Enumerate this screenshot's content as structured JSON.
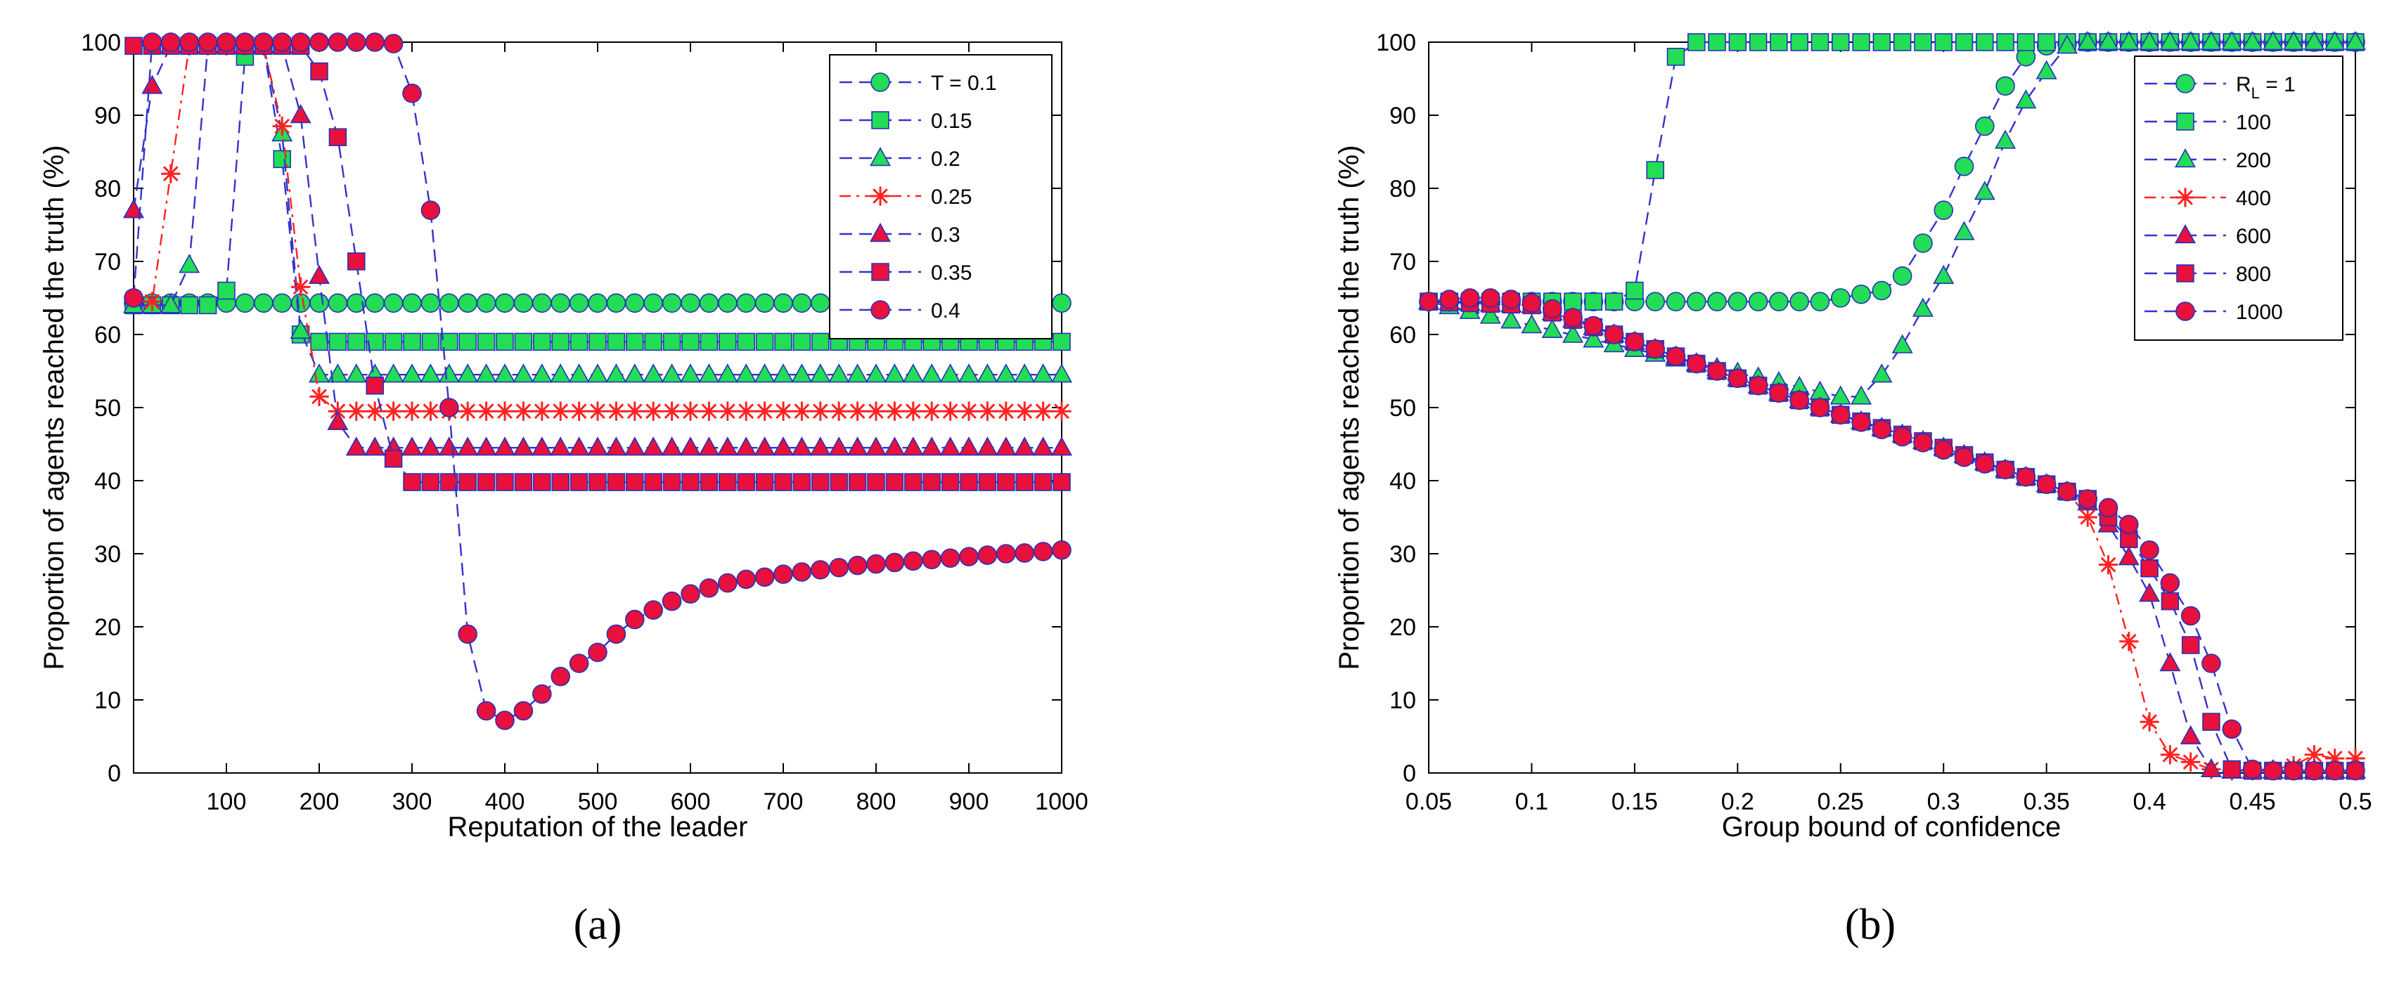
{
  "chart_data": [
    {
      "type": "line",
      "panel": "a",
      "caption": "(a)",
      "xlabel": "Reputation of the leader",
      "ylabel": "Proportion of agents reached the truth (%)",
      "xlim": [
        0,
        1000
      ],
      "ylim": [
        0,
        100
      ],
      "xticks": [
        100,
        200,
        300,
        400,
        500,
        600,
        700,
        800,
        900,
        1000
      ],
      "yticks": [
        0,
        10,
        20,
        30,
        40,
        50,
        60,
        70,
        80,
        90,
        100
      ],
      "legend_position": "top-right",
      "series": [
        {
          "name": "T = 0.1",
          "legend": "T = 0.1",
          "marker": "circle",
          "fill": "#22dd55",
          "line": "#3333cc",
          "dash": "dash",
          "x": [
            0,
            1000
          ],
          "y": [
            64.3,
            64.3
          ],
          "plateau": 64.3
        },
        {
          "name": "0.15",
          "legend": "0.15",
          "marker": "square",
          "fill": "#22dd55",
          "line": "#3333cc",
          "dash": "dash",
          "x": [
            0,
            40,
            60,
            80,
            100,
            120,
            140,
            160,
            180,
            200,
            1000
          ],
          "y": [
            64,
            64,
            64,
            64,
            66,
            98,
            99.5,
            84,
            60,
            59,
            59
          ],
          "plateau": 59
        },
        {
          "name": "0.2",
          "legend": "0.2",
          "marker": "triangle",
          "fill": "#22dd55",
          "line": "#3333cc",
          "dash": "dash",
          "x": [
            0,
            40,
            60,
            80,
            100,
            120,
            140,
            160,
            180,
            200,
            1000
          ],
          "y": [
            64,
            64,
            69.5,
            99.5,
            99.5,
            99.5,
            99.5,
            87.5,
            60.5,
            54.5,
            54.5
          ],
          "plateau": 54.5
        },
        {
          "name": "0.25",
          "legend": "0.25",
          "marker": "star",
          "fill": "#ff2222",
          "line": "#ff2222",
          "dash": "dashdot",
          "x": [
            0,
            20,
            40,
            60,
            80,
            100,
            120,
            140,
            160,
            180,
            200,
            220,
            1000
          ],
          "y": [
            65,
            64.5,
            82,
            99.5,
            99.5,
            99.5,
            99.5,
            99.5,
            88.5,
            66.5,
            51.5,
            49.5,
            49.5
          ],
          "plateau": 49.5
        },
        {
          "name": "0.3",
          "legend": "0.3",
          "marker": "triangle",
          "fill": "#e8103c",
          "line": "#3333cc",
          "dash": "dash",
          "x": [
            0,
            20,
            40,
            60,
            80,
            100,
            120,
            140,
            160,
            180,
            200,
            220,
            240,
            1000
          ],
          "y": [
            77,
            94,
            99.5,
            99.5,
            99.5,
            99.5,
            99.5,
            99.5,
            99.5,
            90,
            68,
            48,
            44.5,
            44.5
          ],
          "plateau": 44.5
        },
        {
          "name": "0.35",
          "legend": "0.35",
          "marker": "square",
          "fill": "#e8103c",
          "line": "#3333cc",
          "dash": "dash",
          "x": [
            0,
            20,
            40,
            60,
            80,
            100,
            120,
            140,
            160,
            180,
            200,
            220,
            240,
            260,
            280,
            300,
            1000
          ],
          "y": [
            99.5,
            99.5,
            99.5,
            99.5,
            99.5,
            99.5,
            99.5,
            99.5,
            99.5,
            99.5,
            96,
            87,
            70,
            53,
            43,
            39.8,
            39.8
          ],
          "plateau": 39.8
        },
        {
          "name": "0.4",
          "legend": "0.4",
          "marker": "circle",
          "fill": "#e8103c",
          "line": "#3333cc",
          "dash": "dash",
          "x": [
            0,
            20,
            40,
            60,
            80,
            100,
            120,
            140,
            160,
            180,
            200,
            220,
            240,
            260,
            280,
            300,
            320,
            340,
            360,
            380,
            400,
            420,
            440,
            460,
            480,
            500,
            520,
            540,
            560,
            580,
            600,
            620,
            640,
            660,
            680,
            700,
            720,
            740,
            760,
            780,
            800,
            820,
            840,
            860,
            880,
            900,
            920,
            940,
            960,
            980,
            1000
          ],
          "y": [
            65,
            100,
            100,
            100,
            100,
            100,
            100,
            100,
            100,
            100,
            100,
            100,
            100,
            100,
            99.8,
            93,
            77,
            50,
            19,
            8.5,
            7.2,
            8.5,
            10.8,
            13.2,
            15,
            16.5,
            19,
            21,
            22.3,
            23.5,
            24.5,
            25.3,
            26,
            26.5,
            26.8,
            27.2,
            27.5,
            27.8,
            28.1,
            28.4,
            28.6,
            28.8,
            29,
            29.2,
            29.4,
            29.6,
            29.8,
            30,
            30.1,
            30.3,
            30.5
          ]
        }
      ]
    },
    {
      "type": "line",
      "panel": "b",
      "caption": "(b)",
      "xlabel": "Group bound of confidence",
      "ylabel": "Proportion of agents reached the truth (%)",
      "xlim": [
        0.05,
        0.5
      ],
      "ylim": [
        0,
        100
      ],
      "xticks": [
        0.05,
        0.1,
        0.15,
        0.2,
        0.25,
        0.3,
        0.35,
        0.4,
        0.45,
        0.5
      ],
      "xtick_labels": [
        "0.05",
        "0.1",
        "0.15",
        "0.2",
        "0.25",
        "0.3",
        "0.35",
        "0.4",
        "0.45",
        "0.5"
      ],
      "yticks": [
        0,
        10,
        20,
        30,
        40,
        50,
        60,
        70,
        80,
        90,
        100
      ],
      "legend_position": "top-right",
      "legend_title_prefix": "R",
      "legend_title_sub": "L",
      "legend_title_suffix": " = 1",
      "series": [
        {
          "name": "1",
          "legend": "1",
          "marker": "circle",
          "fill": "#22dd55",
          "line": "#3333cc",
          "dash": "dash",
          "x": [
            0.05,
            0.06,
            0.07,
            0.08,
            0.09,
            0.1,
            0.11,
            0.12,
            0.13,
            0.14,
            0.15,
            0.16,
            0.17,
            0.18,
            0.19,
            0.2,
            0.21,
            0.22,
            0.23,
            0.24,
            0.25,
            0.26,
            0.27,
            0.28,
            0.29,
            0.3,
            0.31,
            0.32,
            0.33,
            0.34,
            0.35,
            0.36,
            0.37,
            0.38,
            0.39,
            0.4,
            0.41,
            0.42,
            0.43,
            0.44,
            0.45,
            0.46,
            0.47,
            0.48,
            0.49,
            0.5
          ],
          "y": [
            64.5,
            64.5,
            64.5,
            64.5,
            64.5,
            64.5,
            64.5,
            64.5,
            64.5,
            64.5,
            64.5,
            64.5,
            64.5,
            64.5,
            64.5,
            64.5,
            64.5,
            64.5,
            64.5,
            64.5,
            65,
            65.5,
            66,
            68,
            72.5,
            77,
            83,
            88.5,
            94,
            98,
            99.5,
            99.8,
            100,
            100,
            100,
            100,
            100,
            100,
            100,
            100,
            100,
            100,
            100,
            100,
            100,
            100
          ]
        },
        {
          "name": "100",
          "legend": "100",
          "marker": "square",
          "fill": "#22dd55",
          "line": "#3333cc",
          "dash": "dash",
          "x": [
            0.05,
            0.1,
            0.14,
            0.15,
            0.16,
            0.17,
            0.18,
            0.19,
            0.2,
            0.21,
            0.22,
            0.23,
            0.24,
            0.25,
            0.26,
            0.27,
            0.28,
            0.29,
            0.3,
            0.31,
            0.32,
            0.33,
            0.34,
            0.35,
            0.36,
            0.37,
            0.38,
            0.39,
            0.4,
            0.41,
            0.42,
            0.43,
            0.44,
            0.45,
            0.46,
            0.47,
            0.48,
            0.49,
            0.5
          ],
          "y": [
            64.5,
            64.5,
            64.5,
            66,
            82.5,
            98,
            100,
            100,
            100,
            100,
            100,
            100,
            100,
            100,
            100,
            100,
            100,
            100,
            100,
            100,
            100,
            100,
            100,
            100,
            100,
            100,
            100,
            100,
            100,
            100,
            100,
            100,
            100,
            100,
            100,
            100,
            100,
            100,
            100
          ]
        },
        {
          "name": "200",
          "legend": "200",
          "marker": "triangle",
          "fill": "#22dd55",
          "line": "#3333cc",
          "dash": "dash",
          "x": [
            0.05,
            0.25,
            0.26,
            0.27,
            0.28,
            0.29,
            0.3,
            0.31,
            0.32,
            0.33,
            0.34,
            0.35,
            0.36,
            0.37,
            0.38,
            0.39,
            0.4,
            0.41,
            0.42,
            0.43,
            0.44,
            0.45,
            0.46,
            0.47,
            0.48,
            0.49,
            0.5
          ],
          "y": [
            64.5,
            51.5,
            51.5,
            54.5,
            58.5,
            63.5,
            68,
            74,
            79.5,
            86.5,
            92,
            96,
            99.5,
            100,
            100,
            100,
            100,
            100,
            100,
            100,
            100,
            100,
            100,
            100,
            100,
            100,
            100
          ]
        },
        {
          "name": "400",
          "legend": "400",
          "marker": "star",
          "fill": "#ff2222",
          "line": "#ff2222",
          "dash": "dashdot",
          "x": [
            0.05,
            0.1,
            0.15,
            0.2,
            0.25,
            0.3,
            0.35,
            0.36,
            0.37,
            0.38,
            0.39,
            0.4,
            0.41,
            0.42,
            0.43,
            0.44,
            0.45,
            0.46,
            0.47,
            0.48,
            0.49,
            0.5
          ],
          "y": [
            64.5,
            64,
            59,
            54,
            49,
            44.5,
            39.5,
            38.5,
            35,
            28.5,
            18,
            7,
            2.5,
            1.5,
            0.5,
            0.3,
            0.3,
            0.5,
            1,
            2.5,
            2,
            2
          ]
        },
        {
          "name": "600",
          "legend": "600",
          "marker": "triangle",
          "fill": "#e8103c",
          "line": "#3333cc",
          "dash": "dash",
          "x": [
            0.05,
            0.1,
            0.15,
            0.2,
            0.25,
            0.3,
            0.35,
            0.36,
            0.37,
            0.38,
            0.39,
            0.4,
            0.41,
            0.42,
            0.43,
            0.44,
            0.45,
            0.46,
            0.47,
            0.48,
            0.49,
            0.5
          ],
          "y": [
            64.5,
            64,
            59,
            54,
            49,
            44.5,
            39.5,
            38.5,
            37,
            34,
            29.5,
            24.5,
            15,
            5,
            0.5,
            0.3,
            0.3,
            0.3,
            0.3,
            0.3,
            0.3,
            0.3
          ]
        },
        {
          "name": "800",
          "legend": "800",
          "marker": "square",
          "fill": "#e8103c",
          "line": "#3333cc",
          "dash": "dash",
          "x": [
            0.05,
            0.1,
            0.15,
            0.2,
            0.25,
            0.3,
            0.35,
            0.36,
            0.37,
            0.38,
            0.39,
            0.4,
            0.41,
            0.42,
            0.43,
            0.44,
            0.45,
            0.46,
            0.47,
            0.48,
            0.49,
            0.5
          ],
          "y": [
            64.5,
            64,
            59,
            54,
            49,
            44.5,
            39.5,
            38.5,
            37.5,
            35,
            32,
            28,
            23.5,
            17.5,
            7,
            0.5,
            0.3,
            0.3,
            0.3,
            0.3,
            0.3,
            0.3
          ]
        },
        {
          "name": "1000",
          "legend": "1000",
          "marker": "circle",
          "fill": "#e8103c",
          "line": "#3333cc",
          "dash": "dash",
          "x": [
            0.05,
            0.06,
            0.07,
            0.08,
            0.09,
            0.1,
            0.11,
            0.12,
            0.13,
            0.14,
            0.15,
            0.16,
            0.17,
            0.18,
            0.19,
            0.2,
            0.21,
            0.22,
            0.23,
            0.24,
            0.25,
            0.26,
            0.27,
            0.28,
            0.29,
            0.3,
            0.31,
            0.32,
            0.33,
            0.34,
            0.35,
            0.36,
            0.37,
            0.38,
            0.39,
            0.4,
            0.41,
            0.42,
            0.43,
            0.44,
            0.45,
            0.46,
            0.47,
            0.48,
            0.49,
            0.5
          ],
          "y": [
            64.5,
            64.8,
            65,
            65,
            64.8,
            64.3,
            63.5,
            62.3,
            61.2,
            60,
            59,
            58,
            57,
            56,
            55,
            54,
            53,
            52,
            51,
            50,
            49,
            48,
            47,
            46,
            45.2,
            44.2,
            43.2,
            42.3,
            41.5,
            40.5,
            39.5,
            38.5,
            37.5,
            36.3,
            34,
            30.5,
            26,
            21.5,
            15,
            6,
            0.5,
            0.3,
            0.3,
            0.3,
            0.3,
            0.3
          ]
        }
      ]
    }
  ]
}
